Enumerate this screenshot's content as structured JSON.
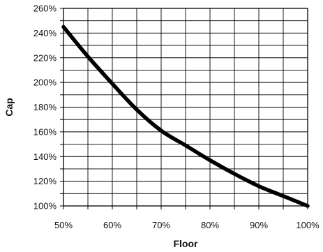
{
  "chart_data": {
    "type": "line",
    "title": "",
    "xlabel": "Floor",
    "ylabel": "Cap",
    "xlim": [
      50,
      100
    ],
    "ylim": [
      100,
      260
    ],
    "x_ticks": [
      50,
      55,
      60,
      65,
      70,
      75,
      80,
      85,
      90,
      95,
      100
    ],
    "x_tick_labels": [
      "50%",
      "",
      "60%",
      "",
      "70%",
      "",
      "80%",
      "",
      "90%",
      "",
      "100%"
    ],
    "y_ticks": [
      100,
      110,
      120,
      130,
      140,
      150,
      160,
      170,
      180,
      190,
      200,
      210,
      220,
      230,
      240,
      250,
      260
    ],
    "y_tick_labels": [
      "100%",
      "",
      "120%",
      "",
      "140%",
      "",
      "160%",
      "",
      "180%",
      "",
      "200%",
      "",
      "220%",
      "",
      "240%",
      "",
      "260%"
    ],
    "grid": true,
    "legend": "none",
    "series": [
      {
        "x": [
          50,
          55,
          60,
          65,
          70,
          75,
          80,
          85,
          90,
          95,
          100
        ],
        "y": [
          245,
          221,
          199,
          178,
          161,
          149,
          137,
          126,
          116,
          108,
          100
        ]
      }
    ],
    "colors": {
      "line": "#000000",
      "grid": "#000000",
      "background": "#ffffff"
    }
  }
}
